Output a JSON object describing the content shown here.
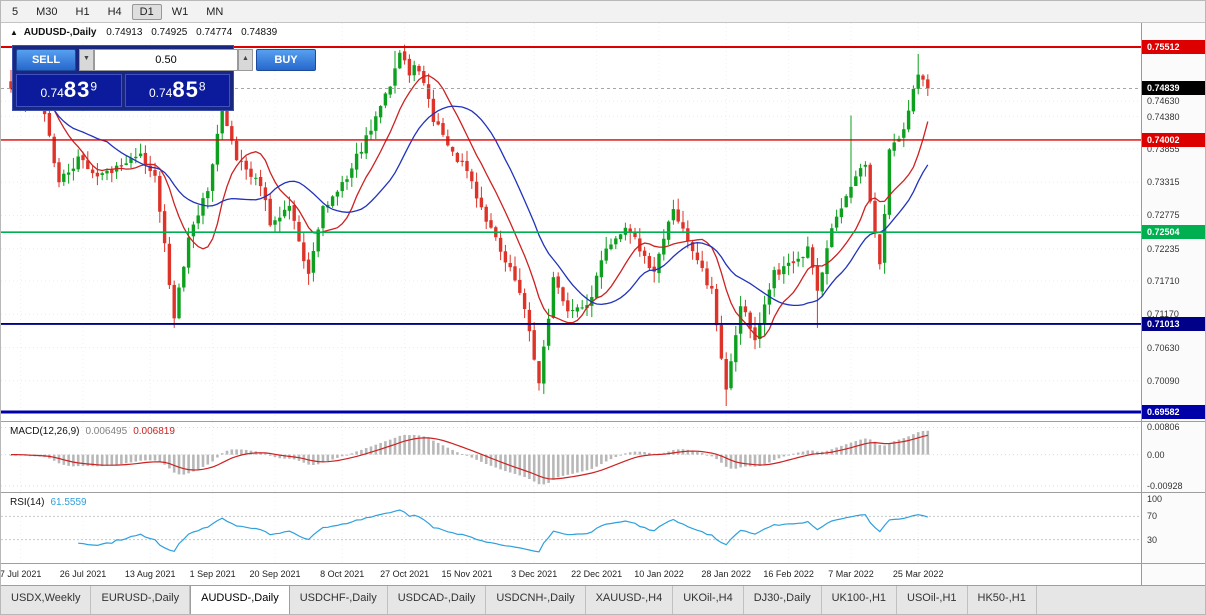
{
  "toolbar": {
    "periods": [
      "5",
      "M30",
      "H1",
      "H4",
      "D1",
      "W1",
      "MN"
    ],
    "active_period": "D1"
  },
  "chart": {
    "expand_icon": "▲",
    "title": "AUDUSD-,Daily",
    "ohlc": {
      "open": "0.74913",
      "high": "0.74925",
      "low": "0.74774",
      "close": "0.74839"
    },
    "trade_panel": {
      "sell_label": "SELL",
      "buy_label": "BUY",
      "lot_value": "0.50",
      "spinner_up": "▲",
      "spinner_down": "▼",
      "sell_price": {
        "prefix": "0.74",
        "big": "83",
        "pip": "9"
      },
      "buy_price": {
        "prefix": "0.74",
        "big": "85",
        "pip": "8"
      }
    },
    "levels": [
      {
        "price": 0.75512,
        "label": "0.75512",
        "color": "#dd0000",
        "line_width": 2
      },
      {
        "price": 0.74002,
        "label": "0.74002",
        "color": "#dd0000",
        "line_width": 1.4
      },
      {
        "price": 0.72504,
        "label": "0.72504",
        "color": "#00b050",
        "line_width": 1.6
      },
      {
        "price": 0.71013,
        "label": "0.71013",
        "color": "#000088",
        "line_width": 1.8
      },
      {
        "price": 0.69582,
        "label": "0.69582",
        "color": "#0000a8",
        "line_width": 3
      }
    ],
    "bid": {
      "price": 0.74839,
      "label": "0.74839",
      "color": "#000000"
    },
    "axis_ticks": [
      "0.74630",
      "0.74380",
      "0.73855",
      "0.73315",
      "0.72775",
      "0.72235",
      "0.71710",
      "0.71170",
      "0.70630",
      "0.70090"
    ],
    "date_ticks": [
      {
        "label": "7 Jul 2021",
        "index": 2
      },
      {
        "label": "26 Jul 2021",
        "index": 15
      },
      {
        "label": "13 Aug 2021",
        "index": 29
      },
      {
        "label": "1 Sep 2021",
        "index": 42
      },
      {
        "label": "20 Sep 2021",
        "index": 55
      },
      {
        "label": "8 Oct 2021",
        "index": 69
      },
      {
        "label": "27 Oct 2021",
        "index": 82
      },
      {
        "label": "15 Nov 2021",
        "index": 95
      },
      {
        "label": "3 Dec 2021",
        "index": 109
      },
      {
        "label": "22 Dec 2021",
        "index": 122
      },
      {
        "label": "10 Jan 2022",
        "index": 135
      },
      {
        "label": "28 Jan 2022",
        "index": 149
      },
      {
        "label": "16 Feb 2022",
        "index": 162
      },
      {
        "label": "7 Mar 2022",
        "index": 175
      },
      {
        "label": "25 Mar 2022",
        "index": 189
      }
    ]
  },
  "chart_data": {
    "type": "candlestick",
    "symbol": "AUDUSD",
    "timeframe": "Daily",
    "candle_count": 192,
    "price_waypoints": [
      [
        0,
        0.7488
      ],
      [
        3,
        0.7455
      ],
      [
        6,
        0.747
      ],
      [
        10,
        0.7335
      ],
      [
        14,
        0.7368
      ],
      [
        19,
        0.7342
      ],
      [
        23,
        0.7362
      ],
      [
        27,
        0.7378
      ],
      [
        30,
        0.7345
      ],
      [
        34,
        0.7107
      ],
      [
        37,
        0.7248
      ],
      [
        41,
        0.7318
      ],
      [
        44,
        0.7455
      ],
      [
        47,
        0.7368
      ],
      [
        52,
        0.7332
      ],
      [
        54,
        0.7268
      ],
      [
        58,
        0.7292
      ],
      [
        62,
        0.7178
      ],
      [
        65,
        0.729
      ],
      [
        70,
        0.7342
      ],
      [
        75,
        0.7418
      ],
      [
        78,
        0.747
      ],
      [
        81,
        0.7536
      ],
      [
        83,
        0.7512
      ],
      [
        85,
        0.7518
      ],
      [
        88,
        0.7432
      ],
      [
        92,
        0.7378
      ],
      [
        95,
        0.7348
      ],
      [
        100,
        0.7252
      ],
      [
        104,
        0.7192
      ],
      [
        107,
        0.7128
      ],
      [
        110,
        0.7002
      ],
      [
        113,
        0.7172
      ],
      [
        116,
        0.7122
      ],
      [
        120,
        0.7128
      ],
      [
        124,
        0.7222
      ],
      [
        128,
        0.7262
      ],
      [
        131,
        0.7226
      ],
      [
        134,
        0.7182
      ],
      [
        138,
        0.7292
      ],
      [
        142,
        0.7222
      ],
      [
        146,
        0.7152
      ],
      [
        149,
        0.6992
      ],
      [
        152,
        0.7132
      ],
      [
        155,
        0.7078
      ],
      [
        159,
        0.7182
      ],
      [
        163,
        0.7202
      ],
      [
        166,
        0.7222
      ],
      [
        168,
        0.7152
      ],
      [
        171,
        0.7256
      ],
      [
        175,
        0.7322
      ],
      [
        178,
        0.7362
      ],
      [
        181,
        0.7192
      ],
      [
        183,
        0.7382
      ],
      [
        186,
        0.7418
      ],
      [
        189,
        0.7512
      ],
      [
        191,
        0.74839
      ]
    ],
    "spikes": [
      {
        "index": 34,
        "low": 0.7106
      },
      {
        "index": 44,
        "high": 0.7477
      },
      {
        "index": 80,
        "high": 0.7545
      },
      {
        "index": 82,
        "high": 0.7555
      },
      {
        "index": 110,
        "low": 0.6993
      },
      {
        "index": 149,
        "low": 0.6968
      },
      {
        "index": 168,
        "low": 0.7095
      },
      {
        "index": 175,
        "high": 0.744
      },
      {
        "index": 189,
        "high": 0.754
      }
    ],
    "ma_fast": {
      "period": 10,
      "color": "#cc2222"
    },
    "ma_slow": {
      "period": 21,
      "color": "#2233bb"
    },
    "up_color": "#0da01e",
    "down_color": "#dd3329"
  },
  "macd": {
    "name": "MACD(12,26,9)",
    "value": "0.006495",
    "signal_value": "0.006819",
    "axis_labels": [
      "0.00806",
      "0.00",
      "-0.00928"
    ],
    "range": [
      -0.0102,
      0.0088
    ],
    "hist_color": "#b8b8b8",
    "signal_color": "#cc2222"
  },
  "rsi": {
    "name": "RSI(14)",
    "value": "61.5559",
    "axis_labels": [
      "100",
      "70",
      "30"
    ],
    "levels": [
      70,
      30
    ],
    "line_color": "#2da0dd"
  },
  "tabs": {
    "active_index": 2,
    "items": [
      "USDX,Weekly",
      "EURUSD-,Daily",
      "AUDUSD-,Daily",
      "USDCHF-,Daily",
      "USDCAD-,Daily",
      "USDCNH-,Daily",
      "XAUUSD-,H4",
      "UKOil-,H4",
      "DJ30-,Daily",
      "UK100-,H1",
      "USOil-,H1",
      "HK50-,H1"
    ]
  }
}
